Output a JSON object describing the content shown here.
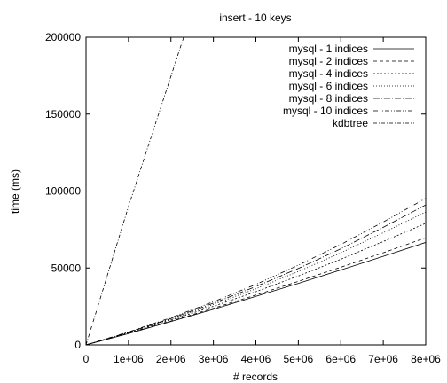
{
  "chart_data": {
    "type": "line",
    "title": "insert - 10 keys",
    "xlabel": "# records",
    "ylabel": "time (ms)",
    "xlim": [
      0,
      8000000
    ],
    "ylim": [
      0,
      200000
    ],
    "x_ticks": [
      0,
      1000000,
      2000000,
      3000000,
      4000000,
      5000000,
      6000000,
      7000000,
      8000000
    ],
    "x_tick_labels": [
      "0",
      "1e+06",
      "2e+06",
      "3e+06",
      "4e+06",
      "5e+06",
      "6e+06",
      "7e+06",
      "8e+06"
    ],
    "y_ticks": [
      0,
      50000,
      100000,
      150000,
      200000
    ],
    "y_tick_labels": [
      "0",
      "50000",
      "100000",
      "150000",
      "200000"
    ],
    "grid": false,
    "legend_position": "top-right",
    "x": [
      0,
      1000000,
      2000000,
      3000000,
      4000000,
      5000000,
      6000000,
      7000000,
      8000000
    ],
    "series": [
      {
        "name": "mysql - 1 indices",
        "dash": "",
        "values": [
          0,
          7400,
          15200,
          23100,
          31500,
          40000,
          48700,
          57600,
          66600
        ]
      },
      {
        "name": "mysql - 2 indices",
        "dash": "4,3",
        "values": [
          0,
          7500,
          15500,
          23800,
          32400,
          41300,
          50500,
          59900,
          69600
        ]
      },
      {
        "name": "mysql - 4 indices",
        "dash": "2,2",
        "values": [
          0,
          7800,
          16200,
          25100,
          34600,
          44800,
          55700,
          67200,
          79000
        ]
      },
      {
        "name": "mysql - 6 indices",
        "dash": "1,2",
        "values": [
          0,
          8000,
          16800,
          26300,
          36500,
          47700,
          59900,
          72900,
          86400
        ]
      },
      {
        "name": "mysql - 8 indices",
        "dash": "7,2,1,2",
        "values": [
          0,
          8200,
          17200,
          27100,
          37900,
          49700,
          62500,
          76400,
          91000
        ]
      },
      {
        "name": "mysql - 10 indices",
        "dash": "5,2,1,2,1,2",
        "values": [
          0,
          8400,
          17700,
          28000,
          39300,
          51800,
          65300,
          79900,
          95300
        ]
      },
      {
        "name": "kdbtree",
        "dash": "4,2,1,2",
        "x": [
          0,
          1000000,
          2300000
        ],
        "values": [
          0,
          90000,
          200000
        ]
      }
    ]
  }
}
